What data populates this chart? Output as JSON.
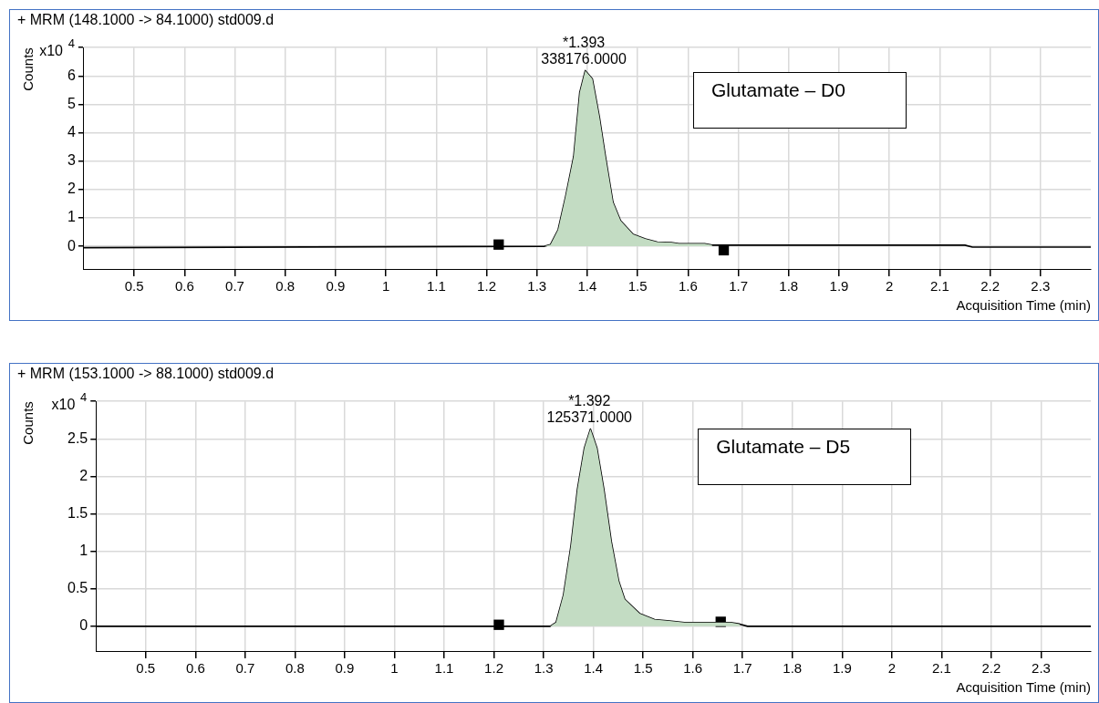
{
  "chart_data": [
    {
      "type": "line",
      "title": "+ MRM (148.1000 -> 84.1000) std009.d",
      "xlabel": "Acquisition Time (min)",
      "ylabel": "Counts",
      "xlim": [
        0.4,
        2.4
      ],
      "ylim": [
        -0.8,
        7
      ],
      "xticks": [
        0.5,
        0.6,
        0.7,
        0.8,
        0.9,
        1,
        1.1,
        1.2,
        1.3,
        1.4,
        1.5,
        1.6,
        1.7,
        1.8,
        1.9,
        2,
        2.1,
        2.2,
        2.3
      ],
      "yticks": [
        0,
        1,
        2,
        3,
        4,
        5,
        6,
        {
          "value": 7,
          "label": null
        }
      ],
      "grid": true,
      "legend": false,
      "annotations": [
        "x10$^{4}$",
        "Glutamate – D0",
        {
          "text": "*1.393\n338176.0000",
          "x": 1.393,
          "y": 6.19
        }
      ],
      "series": [
        {
          "type": "area",
          "color": "#c3dcc3",
          "marker": "none",
          "x": [
            1.315,
            1.327,
            1.342,
            1.357,
            1.373,
            1.385,
            1.396,
            1.41,
            1.424,
            1.436,
            1.451,
            1.466,
            1.491,
            1.515,
            1.539,
            1.567,
            1.582,
            1.633,
            1.648
          ],
          "values": [
            0,
            0.06,
            0.58,
            1.76,
            3.16,
            5.42,
            6.19,
            5.9,
            4.55,
            3.16,
            1.55,
            0.9,
            0.42,
            0.26,
            0.15,
            0.13,
            0.09,
            0.09,
            0.04
          ]
        },
        {
          "type": "line",
          "color": "#000000",
          "marker": "none",
          "x": [
            0.4,
            1.315,
            1.327,
            1.342,
            1.357,
            1.373,
            1.385,
            1.396,
            1.41,
            1.424,
            1.436,
            1.451,
            1.466,
            1.491,
            1.515,
            1.539,
            1.567,
            1.582,
            1.633,
            1.648,
            1.7,
            2.15,
            2.165,
            2.4
          ],
          "values": [
            -0.05,
            0,
            0.06,
            0.58,
            1.76,
            3.16,
            5.42,
            6.19,
            5.9,
            4.55,
            3.16,
            1.55,
            0.9,
            0.42,
            0.26,
            0.15,
            0.13,
            0.09,
            0.09,
            0.04,
            0.04,
            0.04,
            -0.03,
            -0.03
          ]
        },
        {
          "type": "scatter",
          "color": "#000000",
          "marker": "square",
          "x": [
            1.224,
            1.671
          ],
          "values": [
            0.06,
            -0.14
          ]
        }
      ]
    },
    {
      "type": "line",
      "title": "+ MRM (153.1000 -> 88.1000) std009.d",
      "xlabel": "Acquisition Time (min)",
      "ylabel": "Counts",
      "xlim": [
        0.4,
        2.4
      ],
      "ylim": [
        -0.33,
        3
      ],
      "xticks": [
        0.5,
        0.6,
        0.7,
        0.8,
        0.9,
        1,
        1.1,
        1.2,
        1.3,
        1.4,
        1.5,
        1.6,
        1.7,
        1.8,
        1.9,
        2,
        2.1,
        2.2,
        2.3
      ],
      "yticks": [
        0,
        0.5,
        1,
        1.5,
        2,
        2.5,
        {
          "value": 3,
          "label": null
        }
      ],
      "grid": true,
      "legend": false,
      "annotations": [
        "x10$^{4}$",
        "Glutamate – D5",
        {
          "text": "*1.392\n125371.0000",
          "x": 1.392,
          "y": 2.63
        }
      ],
      "series": [
        {
          "type": "area",
          "color": "#c3dcc3",
          "marker": "none",
          "x": [
            1.313,
            1.325,
            1.34,
            1.355,
            1.368,
            1.382,
            1.394,
            1.407,
            1.421,
            1.436,
            1.451,
            1.463,
            1.493,
            1.523,
            1.553,
            1.583,
            1.637,
            1.676,
            1.694
          ],
          "values": [
            0,
            0.05,
            0.42,
            1.08,
            1.83,
            2.38,
            2.63,
            2.38,
            1.83,
            1.13,
            0.6,
            0.36,
            0.17,
            0.09,
            0.07,
            0.05,
            0.05,
            0.05,
            0.03
          ]
        },
        {
          "type": "line",
          "color": "#000000",
          "marker": "none",
          "x": [
            0.4,
            1.313,
            1.325,
            1.34,
            1.355,
            1.368,
            1.382,
            1.394,
            1.407,
            1.421,
            1.436,
            1.451,
            1.463,
            1.493,
            1.523,
            1.553,
            1.583,
            1.637,
            1.676,
            1.694,
            1.71,
            2.4
          ],
          "values": [
            0,
            0,
            0.05,
            0.42,
            1.08,
            1.83,
            2.38,
            2.63,
            2.38,
            1.83,
            1.13,
            0.6,
            0.36,
            0.17,
            0.09,
            0.07,
            0.05,
            0.05,
            0.05,
            0.03,
            0,
            0
          ]
        },
        {
          "type": "scatter",
          "color": "#000000",
          "marker": "square",
          "x": [
            1.21,
            1.656
          ],
          "values": [
            0.02,
            0.06
          ]
        }
      ]
    }
  ]
}
